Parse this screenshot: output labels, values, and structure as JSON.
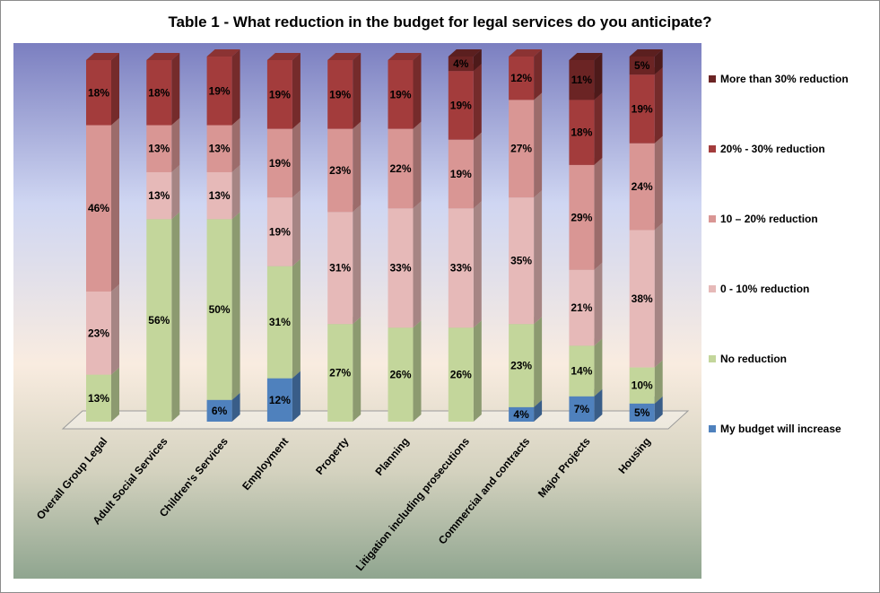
{
  "chart_data": {
    "type": "bar",
    "stacked": true,
    "title": "Table 1 - What reduction in the budget for legal services do you anticipate?",
    "categories": [
      "Overall Group Legal",
      "Adult Social Services",
      "Children's Services",
      "Employment",
      "Property",
      "Planning",
      "Litigation including prosecutions",
      "Commercial and contracts",
      "Major Projects",
      "Housing"
    ],
    "series": [
      {
        "name": "My budget will increase",
        "color": "#4f81bd",
        "values": [
          0,
          0,
          6,
          12,
          0,
          0,
          0,
          4,
          7,
          5
        ]
      },
      {
        "name": "No reduction",
        "color": "#c3d69b",
        "values": [
          13,
          56,
          50,
          31,
          27,
          26,
          26,
          23,
          14,
          10
        ]
      },
      {
        "name": "0 - 10% reduction",
        "color": "#e6b9b8",
        "values": [
          23,
          13,
          13,
          19,
          31,
          33,
          33,
          35,
          21,
          38
        ]
      },
      {
        "name": "10 – 20% reduction",
        "color": "#d99694",
        "values": [
          46,
          13,
          13,
          19,
          23,
          22,
          19,
          27,
          29,
          24
        ]
      },
      {
        "name": "20% - 30% reduction",
        "color": "#a33c3c",
        "values": [
          18,
          18,
          19,
          19,
          19,
          19,
          19,
          12,
          18,
          19
        ]
      },
      {
        "name": "More than 30% reduction",
        "color": "#6b2424",
        "values": [
          0,
          0,
          0,
          0,
          0,
          0,
          4,
          0,
          11,
          5
        ]
      }
    ],
    "value_suffix": "%",
    "ylim": [
      0,
      100
    ],
    "xlabel": "",
    "ylabel": "",
    "legend_position": "right",
    "background": "gradient"
  }
}
